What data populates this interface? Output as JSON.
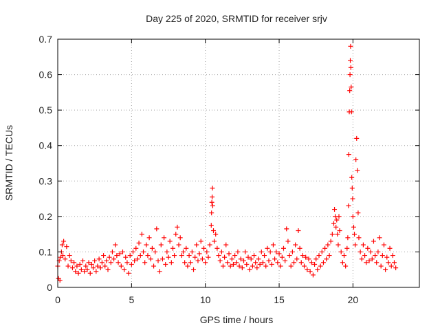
{
  "chart_data": {
    "type": "scatter",
    "title": "Day 225 of 2020, SRMTID for receiver srjv",
    "xlabel": "GPS time / hours",
    "ylabel": "SRMTID / TECUs",
    "xlim": [
      0,
      24.5
    ],
    "ylim": [
      0,
      0.7
    ],
    "grid": true,
    "x_ticks": [
      "0",
      "5",
      "10",
      "15",
      "20"
    ],
    "y_ticks": [
      "0",
      "0.1",
      "0.2",
      "0.3",
      "0.4",
      "0.5",
      "0.6",
      "0.7"
    ],
    "marker": "+",
    "series": [
      {
        "name": "SRMTID",
        "color": "#ff0000",
        "points": [
          [
            0.0,
            0.06
          ],
          [
            0.05,
            0.025
          ],
          [
            0.1,
            0.075
          ],
          [
            0.15,
            0.02
          ],
          [
            0.2,
            0.085
          ],
          [
            0.25,
            0.1
          ],
          [
            0.3,
            0.12
          ],
          [
            0.35,
            0.09
          ],
          [
            0.4,
            0.13
          ],
          [
            0.5,
            0.08
          ],
          [
            0.6,
            0.115
          ],
          [
            0.7,
            0.06
          ],
          [
            0.8,
            0.09
          ],
          [
            0.9,
            0.075
          ],
          [
            1.0,
            0.055
          ],
          [
            1.1,
            0.07
          ],
          [
            1.2,
            0.045
          ],
          [
            1.3,
            0.06
          ],
          [
            1.4,
            0.04
          ],
          [
            1.5,
            0.065
          ],
          [
            1.6,
            0.05
          ],
          [
            1.7,
            0.075
          ],
          [
            1.8,
            0.045
          ],
          [
            1.9,
            0.06
          ],
          [
            2.0,
            0.05
          ],
          [
            2.1,
            0.07
          ],
          [
            2.2,
            0.04
          ],
          [
            2.3,
            0.065
          ],
          [
            2.4,
            0.055
          ],
          [
            2.5,
            0.075
          ],
          [
            2.6,
            0.045
          ],
          [
            2.7,
            0.06
          ],
          [
            2.8,
            0.08
          ],
          [
            2.9,
            0.055
          ],
          [
            3.0,
            0.07
          ],
          [
            3.1,
            0.09
          ],
          [
            3.2,
            0.06
          ],
          [
            3.3,
            0.075
          ],
          [
            3.4,
            0.05
          ],
          [
            3.5,
            0.085
          ],
          [
            3.6,
            0.07
          ],
          [
            3.7,
            0.1
          ],
          [
            3.8,
            0.08
          ],
          [
            3.9,
            0.12
          ],
          [
            4.0,
            0.09
          ],
          [
            4.1,
            0.07
          ],
          [
            4.2,
            0.095
          ],
          [
            4.3,
            0.06
          ],
          [
            4.4,
            0.1
          ],
          [
            4.5,
            0.05
          ],
          [
            4.6,
            0.085
          ],
          [
            4.7,
            0.07
          ],
          [
            4.8,
            0.04
          ],
          [
            4.9,
            0.09
          ],
          [
            5.0,
            0.065
          ],
          [
            5.1,
            0.1
          ],
          [
            5.2,
            0.075
          ],
          [
            5.3,
            0.11
          ],
          [
            5.4,
            0.08
          ],
          [
            5.5,
            0.125
          ],
          [
            5.6,
            0.09
          ],
          [
            5.7,
            0.15
          ],
          [
            5.8,
            0.1
          ],
          [
            5.9,
            0.07
          ],
          [
            6.0,
            0.12
          ],
          [
            6.1,
            0.09
          ],
          [
            6.2,
            0.14
          ],
          [
            6.3,
            0.08
          ],
          [
            6.4,
            0.11
          ],
          [
            6.5,
            0.06
          ],
          [
            6.6,
            0.1
          ],
          [
            6.7,
            0.165
          ],
          [
            6.8,
            0.075
          ],
          [
            6.9,
            0.045
          ],
          [
            7.0,
            0.12
          ],
          [
            7.1,
            0.08
          ],
          [
            7.2,
            0.14
          ],
          [
            7.3,
            0.065
          ],
          [
            7.4,
            0.1
          ],
          [
            7.5,
            0.085
          ],
          [
            7.6,
            0.13
          ],
          [
            7.7,
            0.07
          ],
          [
            7.8,
            0.11
          ],
          [
            7.9,
            0.09
          ],
          [
            8.0,
            0.15
          ],
          [
            8.1,
            0.17
          ],
          [
            8.2,
            0.12
          ],
          [
            8.3,
            0.14
          ],
          [
            8.4,
            0.09
          ],
          [
            8.5,
            0.1
          ],
          [
            8.6,
            0.07
          ],
          [
            8.7,
            0.11
          ],
          [
            8.8,
            0.06
          ],
          [
            8.9,
            0.09
          ],
          [
            9.0,
            0.07
          ],
          [
            9.1,
            0.1
          ],
          [
            9.2,
            0.05
          ],
          [
            9.3,
            0.085
          ],
          [
            9.4,
            0.12
          ],
          [
            9.5,
            0.075
          ],
          [
            9.6,
            0.095
          ],
          [
            9.7,
            0.13
          ],
          [
            9.8,
            0.08
          ],
          [
            9.9,
            0.11
          ],
          [
            10.0,
            0.07
          ],
          [
            10.1,
            0.1
          ],
          [
            10.2,
            0.085
          ],
          [
            10.3,
            0.12
          ],
          [
            10.4,
            0.175
          ],
          [
            10.42,
            0.21
          ],
          [
            10.44,
            0.24
          ],
          [
            10.46,
            0.255
          ],
          [
            10.48,
            0.28
          ],
          [
            10.5,
            0.23
          ],
          [
            10.55,
            0.16
          ],
          [
            10.6,
            0.13
          ],
          [
            10.7,
            0.15
          ],
          [
            10.8,
            0.11
          ],
          [
            10.9,
            0.09
          ],
          [
            11.0,
            0.075
          ],
          [
            11.1,
            0.1
          ],
          [
            11.2,
            0.06
          ],
          [
            11.3,
            0.085
          ],
          [
            11.4,
            0.12
          ],
          [
            11.5,
            0.07
          ],
          [
            11.6,
            0.095
          ],
          [
            11.7,
            0.06
          ],
          [
            11.8,
            0.08
          ],
          [
            11.9,
            0.065
          ],
          [
            12.0,
            0.09
          ],
          [
            12.1,
            0.07
          ],
          [
            12.2,
            0.1
          ],
          [
            12.3,
            0.06
          ],
          [
            12.4,
            0.08
          ],
          [
            12.5,
            0.055
          ],
          [
            12.6,
            0.075
          ],
          [
            12.7,
            0.1
          ],
          [
            12.8,
            0.065
          ],
          [
            12.9,
            0.085
          ],
          [
            13.0,
            0.05
          ],
          [
            13.1,
            0.08
          ],
          [
            13.2,
            0.06
          ],
          [
            13.3,
            0.09
          ],
          [
            13.4,
            0.07
          ],
          [
            13.5,
            0.055
          ],
          [
            13.6,
            0.08
          ],
          [
            13.7,
            0.065
          ],
          [
            13.8,
            0.1
          ],
          [
            13.9,
            0.07
          ],
          [
            14.0,
            0.09
          ],
          [
            14.1,
            0.06
          ],
          [
            14.2,
            0.11
          ],
          [
            14.3,
            0.075
          ],
          [
            14.4,
            0.1
          ],
          [
            14.5,
            0.065
          ],
          [
            14.6,
            0.12
          ],
          [
            14.7,
            0.08
          ],
          [
            14.8,
            0.1
          ],
          [
            14.9,
            0.07
          ],
          [
            15.0,
            0.095
          ],
          [
            15.1,
            0.06
          ],
          [
            15.2,
            0.085
          ],
          [
            15.3,
            0.11
          ],
          [
            15.4,
            0.075
          ],
          [
            15.5,
            0.165
          ],
          [
            15.6,
            0.13
          ],
          [
            15.7,
            0.09
          ],
          [
            15.8,
            0.06
          ],
          [
            15.9,
            0.1
          ],
          [
            16.0,
            0.07
          ],
          [
            16.1,
            0.12
          ],
          [
            16.2,
            0.08
          ],
          [
            16.3,
            0.16
          ],
          [
            16.4,
            0.11
          ],
          [
            16.5,
            0.07
          ],
          [
            16.6,
            0.09
          ],
          [
            16.7,
            0.06
          ],
          [
            16.8,
            0.085
          ],
          [
            16.9,
            0.05
          ],
          [
            17.0,
            0.08
          ],
          [
            17.1,
            0.045
          ],
          [
            17.2,
            0.07
          ],
          [
            17.3,
            0.035
          ],
          [
            17.4,
            0.065
          ],
          [
            17.5,
            0.08
          ],
          [
            17.6,
            0.05
          ],
          [
            17.7,
            0.09
          ],
          [
            17.8,
            0.06
          ],
          [
            17.9,
            0.1
          ],
          [
            18.0,
            0.07
          ],
          [
            18.1,
            0.11
          ],
          [
            18.2,
            0.08
          ],
          [
            18.3,
            0.12
          ],
          [
            18.4,
            0.09
          ],
          [
            18.5,
            0.13
          ],
          [
            18.6,
            0.15
          ],
          [
            18.7,
            0.18
          ],
          [
            18.75,
            0.22
          ],
          [
            18.8,
            0.2
          ],
          [
            18.85,
            0.17
          ],
          [
            18.9,
            0.19
          ],
          [
            18.95,
            0.15
          ],
          [
            19.0,
            0.12
          ],
          [
            19.05,
            0.2
          ],
          [
            19.1,
            0.16
          ],
          [
            19.2,
            0.1
          ],
          [
            19.3,
            0.07
          ],
          [
            19.4,
            0.09
          ],
          [
            19.5,
            0.06
          ],
          [
            19.6,
            0.11
          ],
          [
            19.65,
            0.14
          ],
          [
            19.7,
            0.23
          ],
          [
            19.72,
            0.375
          ],
          [
            19.75,
            0.495
          ],
          [
            19.78,
            0.555
          ],
          [
            19.8,
            0.6
          ],
          [
            19.82,
            0.64
          ],
          [
            19.84,
            0.68
          ],
          [
            19.86,
            0.62
          ],
          [
            19.88,
            0.565
          ],
          [
            19.9,
            0.495
          ],
          [
            19.92,
            0.31
          ],
          [
            19.95,
            0.28
          ],
          [
            19.98,
            0.25
          ],
          [
            20.0,
            0.2
          ],
          [
            20.05,
            0.17
          ],
          [
            20.1,
            0.15
          ],
          [
            20.15,
            0.12
          ],
          [
            20.2,
            0.36
          ],
          [
            20.25,
            0.42
          ],
          [
            20.3,
            0.33
          ],
          [
            20.35,
            0.21
          ],
          [
            20.4,
            0.14
          ],
          [
            20.5,
            0.1
          ],
          [
            20.6,
            0.08
          ],
          [
            20.7,
            0.12
          ],
          [
            20.8,
            0.09
          ],
          [
            20.9,
            0.07
          ],
          [
            21.0,
            0.11
          ],
          [
            21.1,
            0.075
          ],
          [
            21.2,
            0.1
          ],
          [
            21.3,
            0.08
          ],
          [
            21.4,
            0.13
          ],
          [
            21.5,
            0.09
          ],
          [
            21.6,
            0.07
          ],
          [
            21.7,
            0.1
          ],
          [
            21.8,
            0.14
          ],
          [
            21.9,
            0.06
          ],
          [
            22.0,
            0.09
          ],
          [
            22.1,
            0.12
          ],
          [
            22.2,
            0.05
          ],
          [
            22.3,
            0.085
          ],
          [
            22.4,
            0.07
          ],
          [
            22.5,
            0.11
          ],
          [
            22.6,
            0.06
          ],
          [
            22.7,
            0.09
          ],
          [
            22.8,
            0.07
          ],
          [
            22.9,
            0.055
          ]
        ]
      }
    ]
  }
}
